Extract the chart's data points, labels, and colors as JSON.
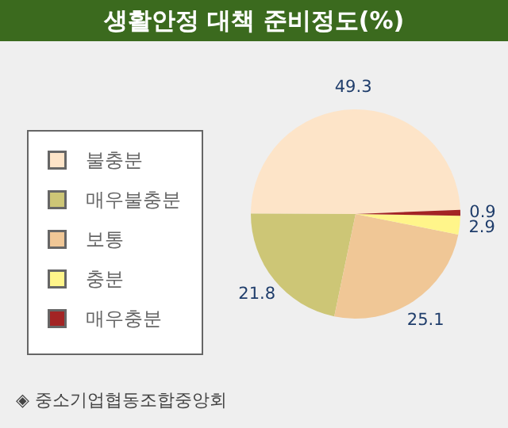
{
  "chart_data": {
    "type": "pie",
    "title": "생활안정 대책 준비정도(%)",
    "categories": [
      "불충분",
      "매우불충분",
      "보통",
      "충분",
      "매우충분"
    ],
    "values": [
      49.3,
      21.8,
      25.1,
      2.9,
      0.9
    ],
    "colors": [
      "#fde4c8",
      "#cdc676",
      "#f0c796",
      "#fff58a",
      "#a32424"
    ],
    "data_labels": true,
    "legend": "left",
    "annotations": [
      "◈ 중소기업협동조합중앙회"
    ]
  }
}
